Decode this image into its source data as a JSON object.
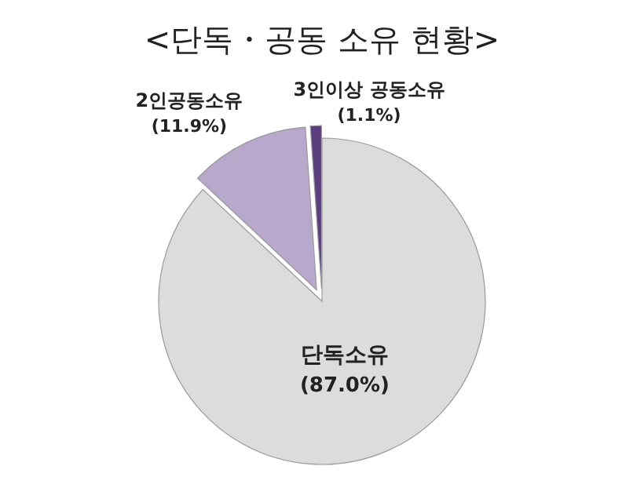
{
  "chart_data": {
    "type": "pie",
    "title": "<단독・공동 소유 현황>",
    "categories": [
      "단독소유",
      "2인공동소유",
      "3인이상 공동소유"
    ],
    "values": [
      87.0,
      11.9,
      1.1
    ],
    "value_labels": [
      "(87.0%)",
      "(11.9%)",
      "(1.1%)"
    ],
    "colors": [
      "#dcdcdc",
      "#b7a8cc",
      "#5b3f7f"
    ]
  }
}
